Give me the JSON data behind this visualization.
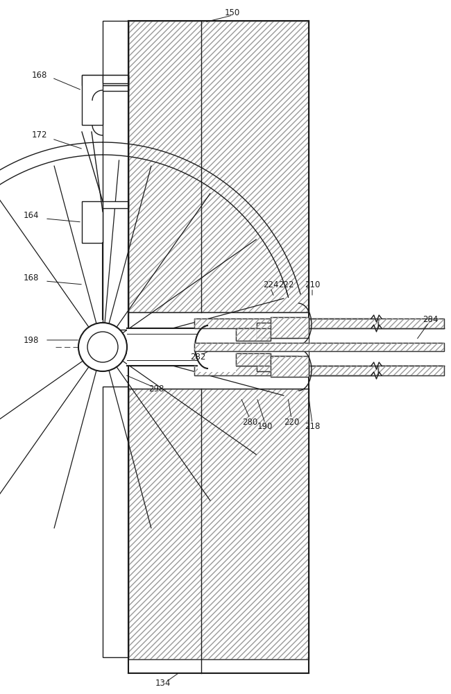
{
  "bg": "#ffffff",
  "lc": "#1a1a1a",
  "hc": "#999999",
  "lw": 1.0,
  "lw2": 1.5,
  "fs": 8.5,
  "fig_w": 6.5,
  "fig_h": 10.0,
  "dpi": 100
}
